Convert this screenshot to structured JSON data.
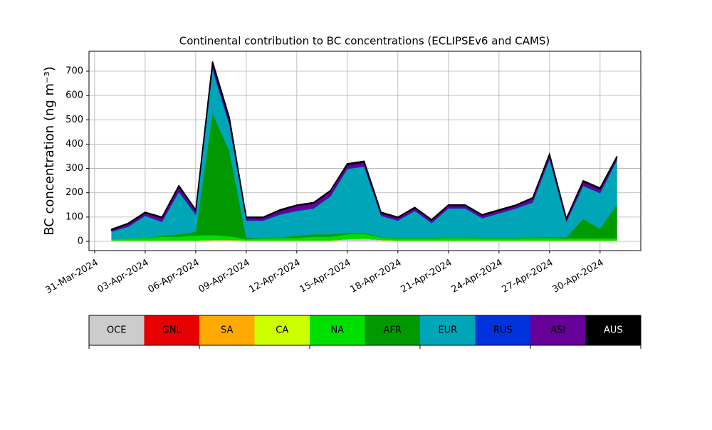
{
  "chart_data": {
    "type": "stacked-area",
    "title": "Continental contribution to BC concentrations (ECLIPSEv6 and CAMS)",
    "y_label": "BC concentration (ng m⁻³)",
    "x": [
      "2024-04-01",
      "2024-04-02",
      "2024-04-03",
      "2024-04-04",
      "2024-04-05",
      "2024-04-06",
      "2024-04-07",
      "2024-04-08",
      "2024-04-09",
      "2024-04-10",
      "2024-04-11",
      "2024-04-12",
      "2024-04-13",
      "2024-04-14",
      "2024-04-15",
      "2024-04-16",
      "2024-04-17",
      "2024-04-18",
      "2024-04-19",
      "2024-04-20",
      "2024-04-21",
      "2024-04-22",
      "2024-04-23",
      "2024-04-24",
      "2024-04-25",
      "2024-04-26",
      "2024-04-27",
      "2024-04-28",
      "2024-04-29",
      "2024-04-30",
      "2024-05-01"
    ],
    "series": [
      {
        "name": "OCE",
        "color": "#cccccc",
        "values": [
          3,
          3,
          3,
          3,
          3,
          3,
          5,
          5,
          3,
          3,
          3,
          3,
          3,
          3,
          8,
          10,
          5,
          3,
          3,
          3,
          3,
          3,
          3,
          3,
          3,
          3,
          3,
          3,
          3,
          3,
          3
        ]
      },
      {
        "name": "GNL",
        "color": "#e60000",
        "values": [
          0,
          0,
          0,
          0,
          0,
          0,
          0,
          0,
          0,
          0,
          0,
          0,
          0,
          0,
          0,
          0,
          0,
          0,
          0,
          0,
          0,
          0,
          0,
          0,
          0,
          0,
          0,
          0,
          0,
          0,
          0
        ]
      },
      {
        "name": "SA",
        "color": "#ffaa00",
        "values": [
          0,
          0,
          0,
          0,
          0,
          0,
          0,
          0,
          0,
          0,
          0,
          0,
          0,
          0,
          0,
          0,
          0,
          0,
          0,
          0,
          0,
          0,
          0,
          0,
          0,
          0,
          0,
          0,
          0,
          0,
          0
        ]
      },
      {
        "name": "CA",
        "color": "#ccff00",
        "values": [
          1,
          1,
          1,
          1,
          1,
          1,
          1,
          1,
          1,
          1,
          1,
          1,
          1,
          1,
          1,
          1,
          1,
          1,
          1,
          1,
          1,
          1,
          1,
          1,
          1,
          1,
          1,
          1,
          1,
          1,
          1
        ]
      },
      {
        "name": "NA",
        "color": "#00e000",
        "values": [
          5,
          8,
          10,
          15,
          15,
          20,
          20,
          15,
          5,
          8,
          10,
          10,
          15,
          15,
          20,
          20,
          10,
          8,
          8,
          8,
          10,
          10,
          8,
          8,
          8,
          10,
          10,
          8,
          8,
          8,
          8
        ]
      },
      {
        "name": "AFR",
        "color": "#009900",
        "values": [
          0,
          0,
          0,
          5,
          10,
          15,
          500,
          350,
          5,
          2,
          2,
          10,
          10,
          10,
          5,
          5,
          2,
          2,
          2,
          2,
          2,
          2,
          2,
          2,
          2,
          2,
          5,
          5,
          80,
          40,
          140
        ]
      },
      {
        "name": "EUR",
        "color": "#00a5b8",
        "values": [
          31,
          48,
          91,
          56,
          174,
          71,
          182,
          109,
          71,
          71,
          94,
          101,
          106,
          156,
          264,
          272,
          87,
          71,
          111,
          61,
          119,
          119,
          81,
          101,
          121,
          144,
          319,
          63,
          136,
          146,
          181
        ]
      },
      {
        "name": "RUS",
        "color": "#0033dd",
        "values": [
          2,
          2,
          2,
          2,
          2,
          2,
          2,
          2,
          2,
          2,
          2,
          2,
          2,
          2,
          2,
          2,
          2,
          2,
          2,
          2,
          2,
          2,
          2,
          2,
          2,
          2,
          2,
          2,
          2,
          2,
          2
        ]
      },
      {
        "name": "ASI",
        "color": "#660099",
        "values": [
          5,
          10,
          10,
          15,
          20,
          15,
          20,
          20,
          10,
          10,
          15,
          20,
          20,
          20,
          15,
          15,
          10,
          10,
          10,
          10,
          10,
          10,
          10,
          10,
          10,
          15,
          15,
          10,
          15,
          15,
          10
        ]
      },
      {
        "name": "AUS",
        "color": "#000000",
        "values": [
          3,
          3,
          3,
          3,
          5,
          3,
          10,
          8,
          3,
          3,
          3,
          3,
          3,
          3,
          5,
          5,
          3,
          3,
          3,
          3,
          3,
          3,
          3,
          3,
          3,
          3,
          5,
          3,
          5,
          5,
          5
        ]
      }
    ],
    "xlim": [
      "2024-03-30T16:00Z",
      "2024-05-02T10:00Z"
    ],
    "xticks": [
      {
        "value": "2024-03-31",
        "label": "31-Mar-2024"
      },
      {
        "value": "2024-04-03",
        "label": "03-Apr-2024"
      },
      {
        "value": "2024-04-06",
        "label": "06-Apr-2024"
      },
      {
        "value": "2024-04-09",
        "label": "09-Apr-2024"
      },
      {
        "value": "2024-04-12",
        "label": "12-Apr-2024"
      },
      {
        "value": "2024-04-15",
        "label": "15-Apr-2024"
      },
      {
        "value": "2024-04-18",
        "label": "18-Apr-2024"
      },
      {
        "value": "2024-04-21",
        "label": "21-Apr-2024"
      },
      {
        "value": "2024-04-24",
        "label": "24-Apr-2024"
      },
      {
        "value": "2024-04-27",
        "label": "27-Apr-2024"
      },
      {
        "value": "2024-04-30",
        "label": "30-Apr-2024"
      }
    ],
    "ylim": [
      -38,
      782
    ],
    "yticks": [
      0,
      100,
      200,
      300,
      400,
      500,
      600,
      700
    ],
    "grid": true
  }
}
